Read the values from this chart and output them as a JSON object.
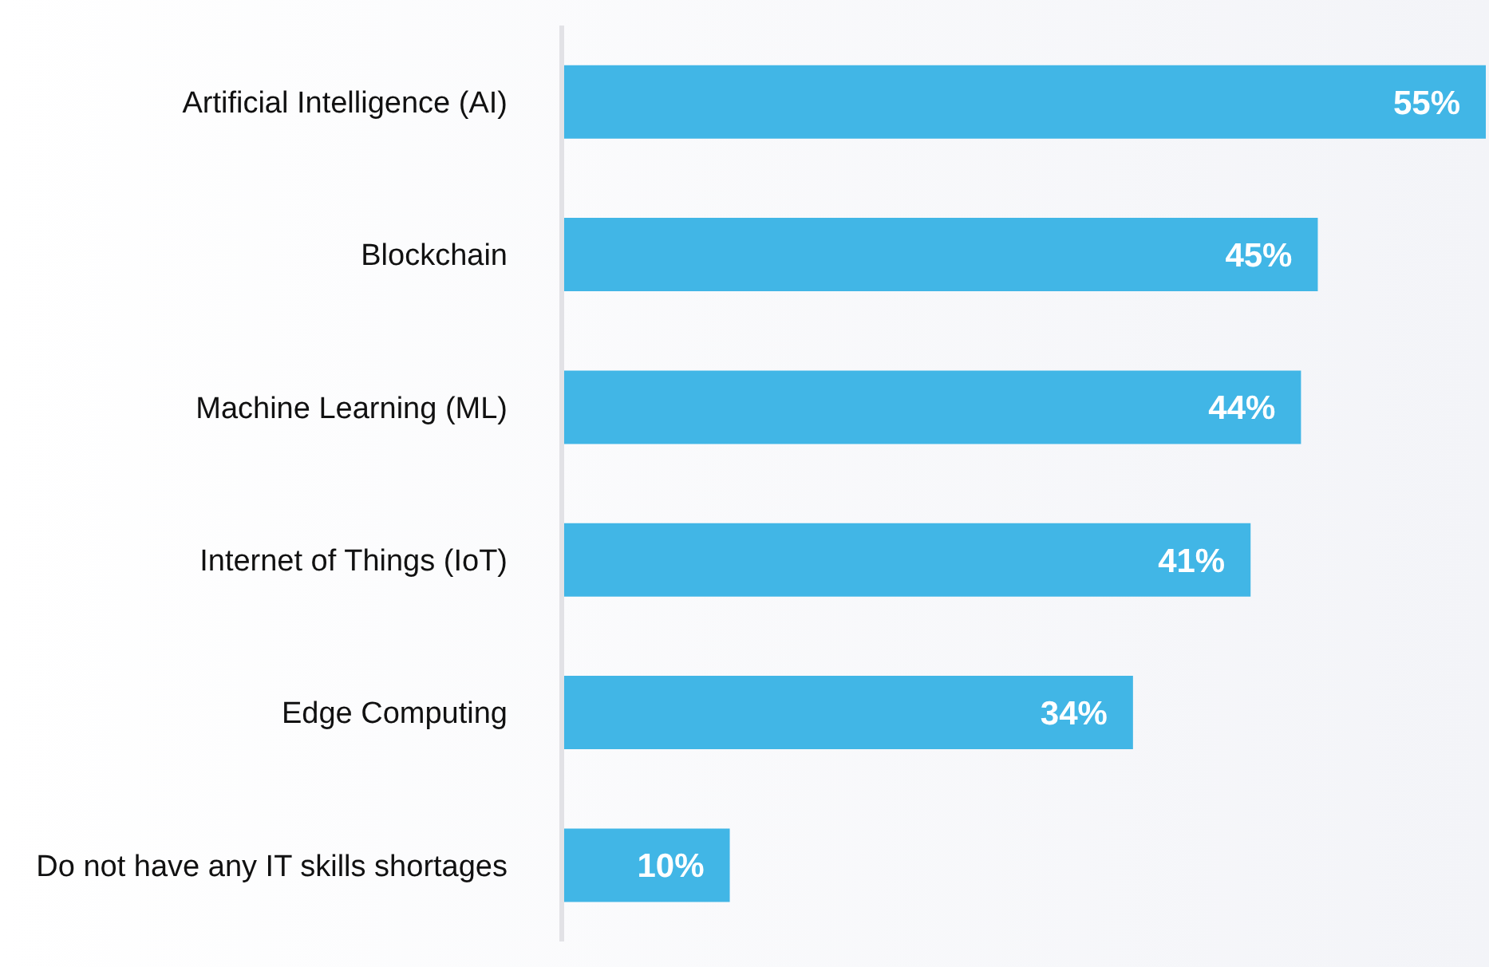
{
  "chart_data": {
    "type": "bar",
    "orientation": "horizontal",
    "categories": [
      "Artificial Intelligence (AI)",
      "Blockchain",
      "Machine Learning (ML)",
      "Internet of Things (IoT)",
      "Edge Computing",
      "Do not have any IT skills shortages"
    ],
    "values": [
      55,
      45,
      44,
      41,
      34,
      10
    ],
    "color": "#41b6e6",
    "data_labels": true,
    "value_labels": [
      "55%",
      "45%",
      "44%",
      "41%",
      "34%",
      "10%"
    ],
    "grid": false,
    "legend": false
  }
}
